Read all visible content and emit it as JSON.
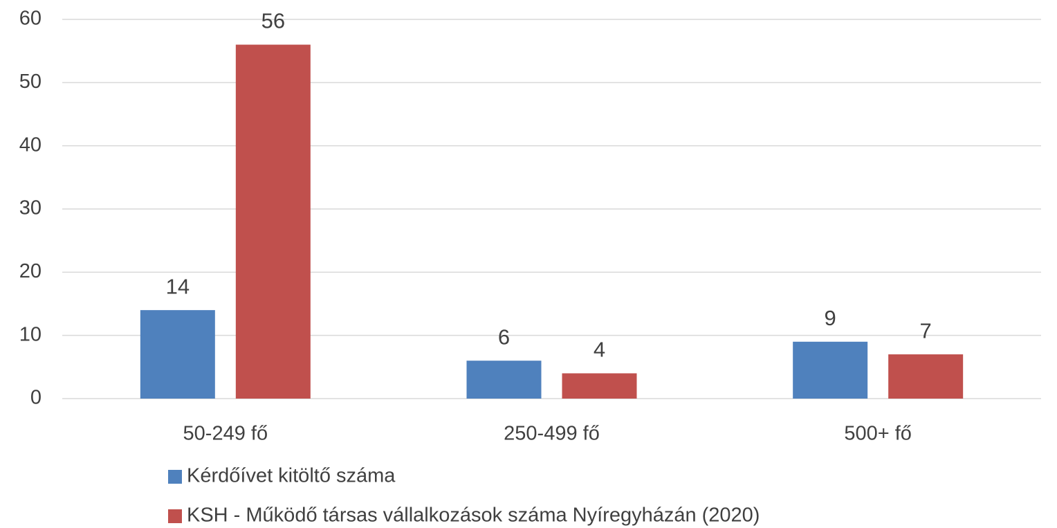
{
  "chart_data": {
    "type": "bar",
    "categories": [
      "50-249 fő",
      "250-499 fő",
      "500+ fő"
    ],
    "series": [
      {
        "name": "Kérdőívet kitöltő száma",
        "color": "#4f81bd",
        "values": [
          14,
          6,
          9
        ]
      },
      {
        "name": "KSH - Működő társas vállalkozások száma Nyíregyházán (2020)",
        "color": "#c0504d",
        "values": [
          56,
          4,
          7
        ]
      }
    ],
    "ylim": [
      0,
      60
    ],
    "yticks": [
      0,
      10,
      20,
      30,
      40,
      50,
      60
    ],
    "grid": true,
    "legend": "bottom"
  }
}
